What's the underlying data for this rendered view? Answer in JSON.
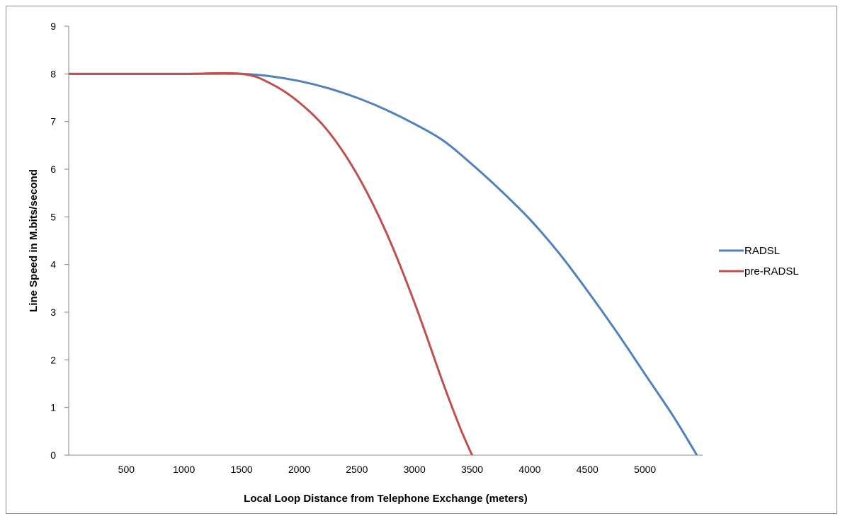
{
  "chart_data": {
    "type": "line",
    "title": "",
    "xlabel": "Local Loop Distance from Telephone Exchange (meters)",
    "ylabel": "Line Speed in M.bits/second",
    "xlim": [
      0,
      5500
    ],
    "ylim": [
      0,
      9
    ],
    "xticks": [
      500,
      1000,
      1500,
      2000,
      2500,
      3000,
      3500,
      4000,
      4500,
      5000
    ],
    "yticks": [
      0,
      1,
      2,
      3,
      4,
      5,
      6,
      7,
      8,
      9
    ],
    "grid": false,
    "legend_position": "right",
    "series": [
      {
        "name": "RADSL",
        "color": "#4f81bd",
        "points": [
          [
            0,
            8
          ],
          [
            500,
            8
          ],
          [
            1000,
            8
          ],
          [
            1500,
            8
          ],
          [
            1750,
            7.95
          ],
          [
            2000,
            7.85
          ],
          [
            2250,
            7.7
          ],
          [
            2500,
            7.5
          ],
          [
            2750,
            7.25
          ],
          [
            3000,
            6.95
          ],
          [
            3250,
            6.6
          ],
          [
            3500,
            6.1
          ],
          [
            3750,
            5.55
          ],
          [
            4000,
            4.95
          ],
          [
            4250,
            4.25
          ],
          [
            4500,
            3.45
          ],
          [
            4750,
            2.6
          ],
          [
            5000,
            1.7
          ],
          [
            5250,
            0.8
          ],
          [
            5450,
            0
          ]
        ]
      },
      {
        "name": "pre-RADSL",
        "color": "#c0504d",
        "points": [
          [
            0,
            8
          ],
          [
            500,
            8
          ],
          [
            1000,
            8
          ],
          [
            1500,
            8
          ],
          [
            1750,
            7.8
          ],
          [
            2000,
            7.4
          ],
          [
            2250,
            6.8
          ],
          [
            2500,
            5.9
          ],
          [
            2750,
            4.7
          ],
          [
            3000,
            3.2
          ],
          [
            3250,
            1.5
          ],
          [
            3400,
            0.55
          ],
          [
            3500,
            0
          ]
        ]
      }
    ]
  }
}
